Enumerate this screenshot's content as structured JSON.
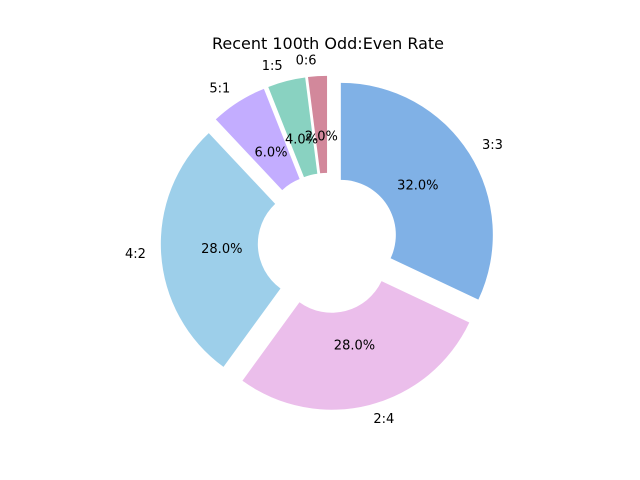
{
  "chart_data": {
    "type": "pie",
    "style": "donut-exploded",
    "title": "Recent 100th Odd:Even Rate",
    "start_angle_deg": 90,
    "direction": "clockwise",
    "slices": [
      {
        "label": "3:3",
        "value": 32.0,
        "pct_text": "32.0%",
        "color": "#80b1e6"
      },
      {
        "label": "2:4",
        "value": 28.0,
        "pct_text": "28.0%",
        "color": "#ebbeeb"
      },
      {
        "label": "4:2",
        "value": 28.0,
        "pct_text": "28.0%",
        "color": "#9dcfea"
      },
      {
        "label": "5:1",
        "value": 6.0,
        "pct_text": "6.0%",
        "color": "#c3adff"
      },
      {
        "label": "1:5",
        "value": 4.0,
        "pct_text": "4.0%",
        "color": "#89d2c1"
      },
      {
        "label": "0:6",
        "value": 2.0,
        "pct_text": "2.0%",
        "color": "#d2889b"
      }
    ]
  }
}
